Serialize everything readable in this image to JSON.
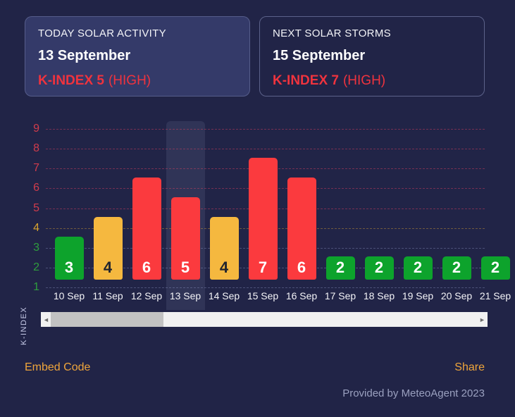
{
  "colors": {
    "background": "#212447",
    "card_fill": "#343a69",
    "alert_red": "#ef333e",
    "bar_red": "#fb3a3e",
    "bar_orange": "#f5b83f",
    "bar_green": "#0da32c",
    "tick_red": "#d23c4c",
    "tick_orange": "#d8a32e",
    "tick_green": "#2f9e3e",
    "link_orange": "#efa53b",
    "provided_gray": "#9aa0bf"
  },
  "cards": [
    {
      "title": "TODAY SOLAR ACTIVITY",
      "date": "13 September",
      "kindex": "K-INDEX 5",
      "severity": "(HIGH)"
    },
    {
      "title": "NEXT SOLAR STORMS",
      "date": "15 September",
      "kindex": "K-INDEX 7",
      "severity": "(HIGH)"
    }
  ],
  "chart_data": {
    "type": "bar",
    "categories": [
      "10 Sep",
      "11 Sep",
      "12 Sep",
      "13 Sep",
      "14 Sep",
      "15 Sep",
      "16 Sep",
      "17 Sep",
      "18 Sep",
      "19 Sep",
      "20 Sep",
      "21 Sep"
    ],
    "values": [
      3,
      4,
      6,
      5,
      4,
      7,
      6,
      2,
      2,
      2,
      2,
      2
    ],
    "ylabel": "K-INDEX",
    "xlabel": "",
    "ylim": [
      1,
      9
    ],
    "yticks": [
      1,
      2,
      3,
      4,
      5,
      6,
      7,
      8,
      9
    ],
    "grid": true,
    "legend": false,
    "highlighted_category": "13 Sep",
    "color_rule": {
      "green": "values 1-3",
      "orange": "value 4",
      "red": "values 5-9"
    }
  },
  "footer": {
    "embed_code": "Embed Code",
    "share": "Share",
    "provided_by": "Provided by MeteoAgent 2023"
  },
  "icons": {
    "scroll_left": "◄",
    "scroll_right": "►"
  }
}
